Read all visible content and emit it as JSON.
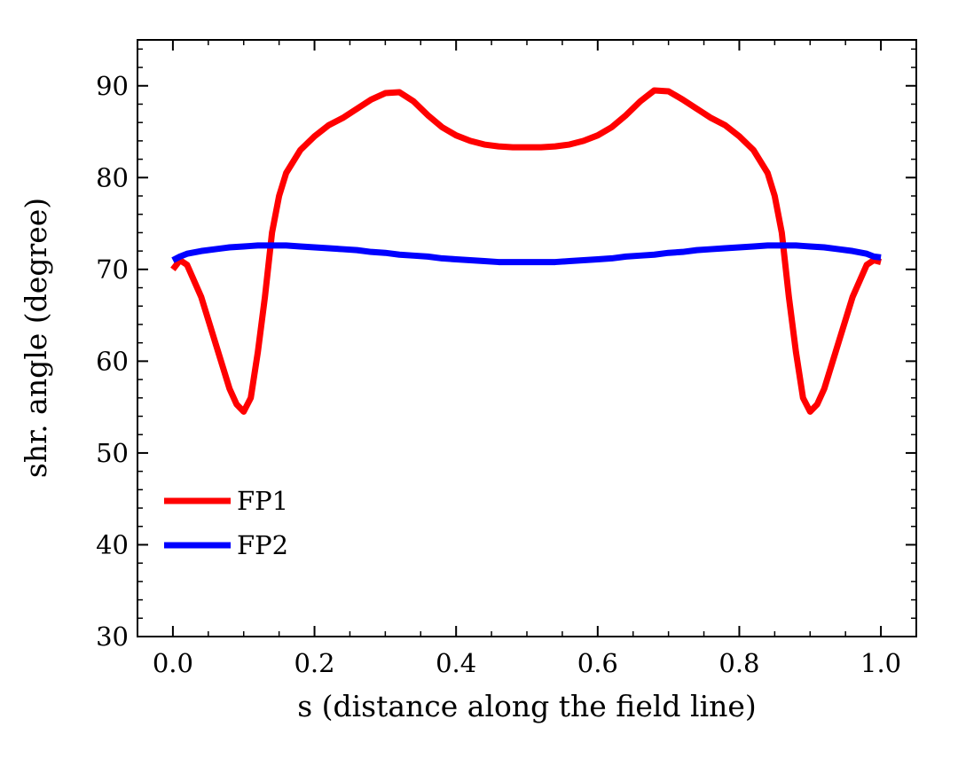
{
  "chart_data": {
    "type": "line",
    "xlabel": "s (distance along the field line)",
    "ylabel": "shr. angle (degree)",
    "x": [
      0,
      0.01,
      0.02,
      0.04,
      0.06,
      0.08,
      0.09,
      0.1,
      0.11,
      0.12,
      0.13,
      0.14,
      0.15,
      0.16,
      0.18,
      0.2,
      0.22,
      0.24,
      0.26,
      0.28,
      0.3,
      0.32,
      0.34,
      0.36,
      0.38,
      0.4,
      0.42,
      0.44,
      0.46,
      0.48,
      0.5,
      0.52,
      0.54,
      0.56,
      0.58,
      0.6,
      0.62,
      0.64,
      0.66,
      0.68,
      0.7,
      0.72,
      0.74,
      0.76,
      0.78,
      0.8,
      0.82,
      0.84,
      0.85,
      0.86,
      0.87,
      0.88,
      0.89,
      0.9,
      0.91,
      0.92,
      0.94,
      0.96,
      0.98,
      0.99,
      1.0
    ],
    "series": [
      {
        "name": "FP1",
        "color": "#ff0000",
        "values": [
          70,
          71,
          70.5,
          67,
          62,
          57,
          55.3,
          54.5,
          56,
          61,
          67,
          74,
          78,
          80.5,
          83,
          84.5,
          85.7,
          86.5,
          87.5,
          88.5,
          89.2,
          89.3,
          88.3,
          86.8,
          85.5,
          84.6,
          84,
          83.6,
          83.4,
          83.3,
          83.3,
          83.3,
          83.4,
          83.6,
          84,
          84.6,
          85.5,
          86.8,
          88.3,
          89.5,
          89.4,
          88.5,
          87.5,
          86.5,
          85.7,
          84.5,
          83,
          80.5,
          78,
          74,
          67,
          61,
          56,
          54.5,
          55.3,
          57,
          62,
          67,
          70.5,
          71,
          70.8
        ]
      },
      {
        "name": "FP2",
        "color": "#0000ff",
        "values": [
          71,
          71.4,
          71.7,
          72,
          72.2,
          72.4,
          72.45,
          72.5,
          72.55,
          72.6,
          72.6,
          72.6,
          72.6,
          72.6,
          72.5,
          72.4,
          72.3,
          72.2,
          72.1,
          71.9,
          71.8,
          71.6,
          71.5,
          71.4,
          71.2,
          71.1,
          71,
          70.9,
          70.8,
          70.8,
          70.8,
          70.8,
          70.8,
          70.9,
          71,
          71.1,
          71.2,
          71.4,
          71.5,
          71.6,
          71.8,
          71.9,
          72.1,
          72.2,
          72.3,
          72.4,
          72.5,
          72.6,
          72.6,
          72.6,
          72.6,
          72.6,
          72.55,
          72.5,
          72.45,
          72.4,
          72.2,
          72,
          71.7,
          71.4,
          71.3
        ]
      }
    ],
    "xlim": [
      -0.05,
      1.05
    ],
    "ylim": [
      30,
      95
    ],
    "xticks": [
      {
        "value": 0,
        "label": "0.0"
      },
      0.2,
      0.4,
      0.6,
      0.8,
      {
        "value": 1,
        "label": "1.0"
      }
    ],
    "yticks": [
      30,
      40,
      50,
      60,
      70,
      80,
      90
    ],
    "xminorticks": [
      0.05,
      0.1,
      0.15,
      0.25,
      0.3,
      0.35,
      0.45,
      0.5,
      0.55,
      0.65,
      0.7,
      0.75,
      0.85,
      0.9,
      0.95
    ],
    "yminorticks": [
      32,
      34,
      36,
      38,
      42,
      44,
      46,
      48,
      52,
      54,
      56,
      58,
      62,
      64,
      66,
      68,
      72,
      74,
      76,
      78,
      82,
      84,
      86,
      88,
      92,
      94
    ],
    "grid": false,
    "legend": "lower left"
  }
}
